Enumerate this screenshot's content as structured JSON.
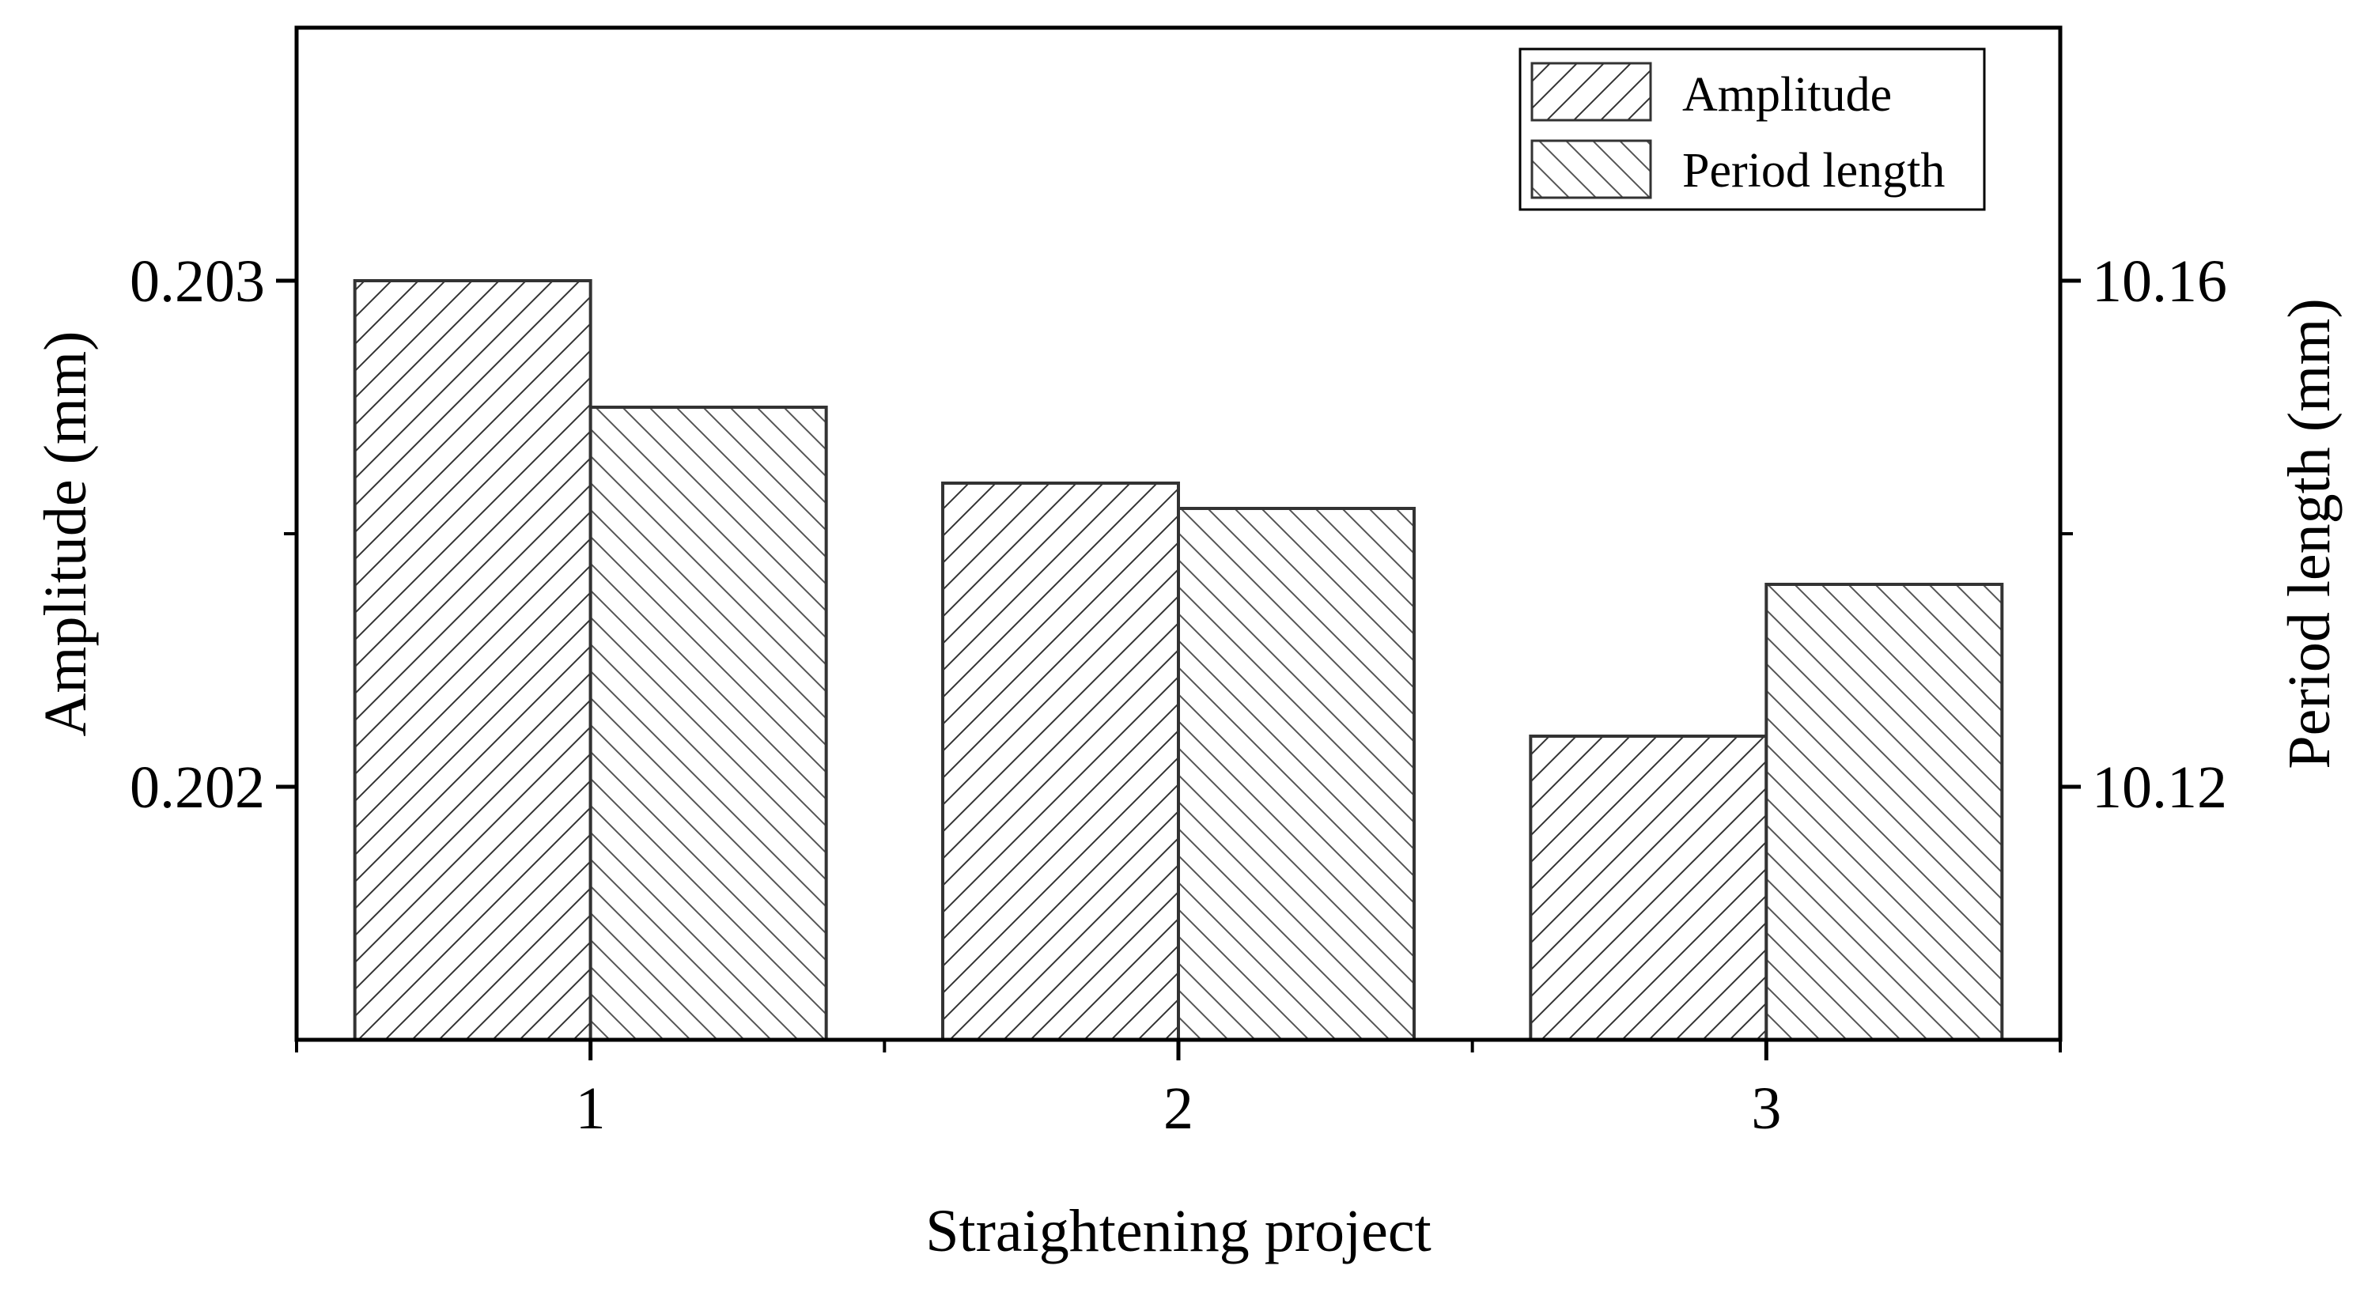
{
  "chart_data": {
    "type": "bar",
    "categories": [
      "1",
      "2",
      "3"
    ],
    "series": [
      {
        "name": "Amplitude",
        "axis": "left",
        "values": [
          0.203,
          0.2026,
          0.2021
        ],
        "pattern": "forward-hatch"
      },
      {
        "name": "Period length",
        "axis": "right",
        "values": [
          10.15,
          10.142,
          10.136
        ],
        "pattern": "back-hatch"
      }
    ],
    "xlabel": "Straightening project",
    "ylabel_left": "Amplitude (mm)",
    "ylabel_right": "Period length (mm)",
    "ylim_left": [
      0.2015,
      0.2035
    ],
    "ylim_right": [
      10.1,
      10.18
    ],
    "yticks_left": [
      {
        "value": 0.202,
        "label": "0.202"
      },
      {
        "value": 0.203,
        "label": "0.203"
      }
    ],
    "yticks_right": [
      {
        "value": 10.12,
        "label": "10.12"
      },
      {
        "value": 10.16,
        "label": "10.16"
      }
    ],
    "minor_ticks_left": [
      0.2025
    ],
    "minor_ticks_right": [
      10.14
    ],
    "legend_position": "top-right",
    "grid": false,
    "colors": {
      "bar_outline": "#333333",
      "hatch": "#333333",
      "axis": "#000000"
    }
  }
}
